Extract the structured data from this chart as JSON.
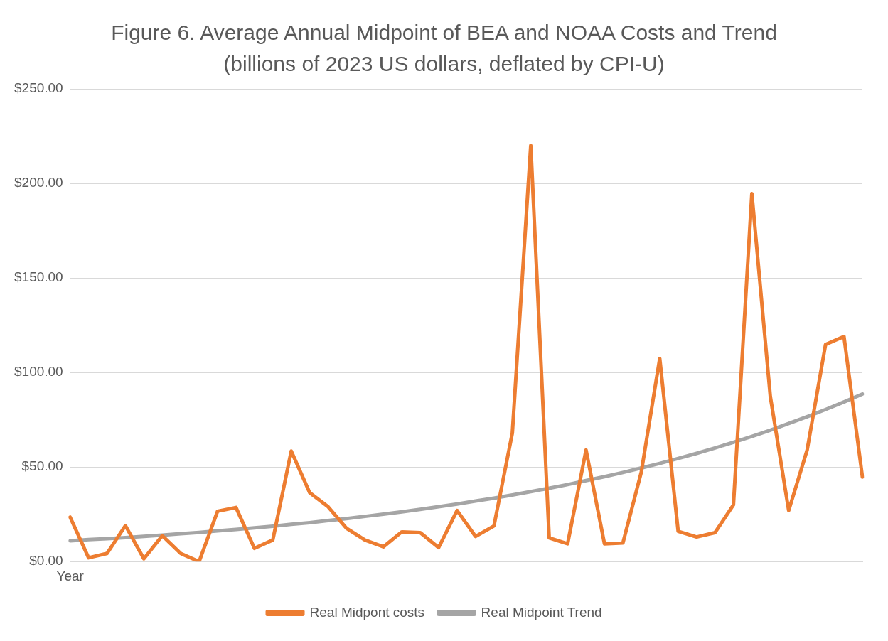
{
  "chart_data": {
    "type": "line",
    "title": "Figure 6. Average Annual Midpoint of BEA and NOAA Costs and Trend (billions of 2023 US dollars, deflated by CPI-U)",
    "categories": [
      "Year",
      null,
      null,
      null,
      null,
      null,
      null,
      null,
      null,
      null,
      null,
      null,
      null,
      null,
      null,
      null,
      null,
      null,
      null,
      null,
      null,
      null,
      null,
      null,
      null,
      null,
      null,
      null,
      null,
      null,
      null,
      null,
      null,
      null,
      null,
      null,
      null,
      null,
      null,
      null,
      null,
      null,
      null,
      null
    ],
    "series": [
      {
        "name": "Real Midpont costs",
        "color": "#ed7d31",
        "values": [
          23.5,
          2,
          4.3,
          19,
          1.5,
          13.7,
          4.3,
          0,
          26.6,
          28.6,
          7,
          11.4,
          58.4,
          36.4,
          29,
          17.6,
          11.4,
          7.8,
          15.7,
          15.3,
          7.4,
          27,
          13.3,
          18.8,
          68,
          220,
          12.5,
          9.4,
          59,
          9.4,
          9.8,
          47.4,
          107.4,
          16,
          13,
          15.3,
          30,
          194.6,
          87.4,
          27,
          59,
          114.8,
          119,
          44.7
        ]
      },
      {
        "name": "Real Midpoint Trend",
        "color": "#a5a5a5",
        "values": [
          11,
          11.6,
          12.1,
          12.7,
          13.3,
          14,
          14.7,
          15.4,
          16.2,
          17,
          17.8,
          18.7,
          19.7,
          20.6,
          21.7,
          22.7,
          23.9,
          25.1,
          26.3,
          27.6,
          29,
          30.4,
          32,
          33.5,
          35.2,
          37,
          38.8,
          40.7,
          42.8,
          44.9,
          47.1,
          49.5,
          51.9,
          54.5,
          57.2,
          60.1,
          63.1,
          66.2,
          69.5,
          73,
          76.6,
          80.4,
          84.4,
          88.6
        ]
      }
    ],
    "ylim": [
      0,
      250
    ],
    "yticks": [
      {
        "value": 0,
        "label": "$0.00"
      },
      {
        "value": 50,
        "label": "$50.00"
      },
      {
        "value": 100,
        "label": "$100.00"
      },
      {
        "value": 150,
        "label": "$150.00"
      },
      {
        "value": 200,
        "label": "$200.00"
      },
      {
        "value": 250,
        "label": "$250.00"
      }
    ],
    "grid": "y",
    "legend": "bottom",
    "marker": "none",
    "line_style": "solid"
  }
}
